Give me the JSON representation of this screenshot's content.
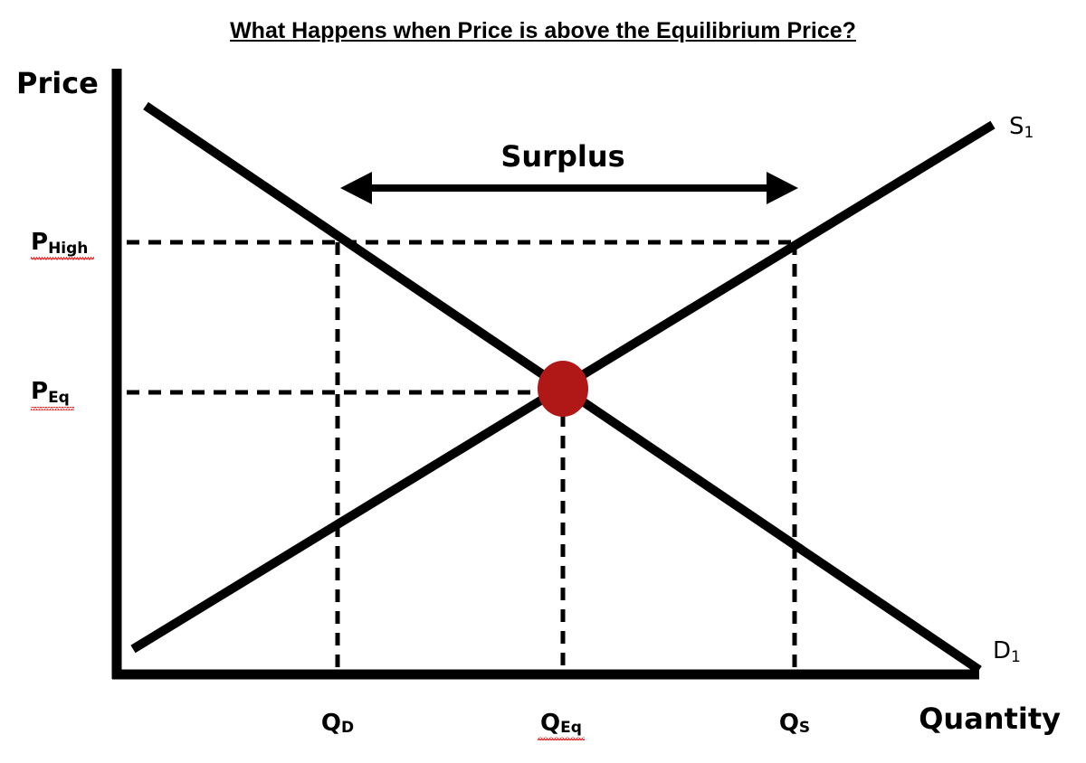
{
  "title": "What Happens when Price is above the Equilibrium Price?",
  "axes": {
    "y_label": "Price",
    "x_label": "Quantity"
  },
  "price_ticks": {
    "high": {
      "main": "P",
      "sub": "High"
    },
    "eq": {
      "main": "P",
      "sub": "Eq"
    }
  },
  "quantity_ticks": {
    "demanded": {
      "main": "Q",
      "sub": "D"
    },
    "eq": {
      "main": "Q",
      "sub": "Eq"
    },
    "supplied": {
      "main": "Q",
      "sub": "S"
    }
  },
  "curves": {
    "supply": {
      "main": "S",
      "sub": "1"
    },
    "demand": {
      "main": "D",
      "sub": "1"
    }
  },
  "surplus_label": "Surplus",
  "colors": {
    "line": "#000000",
    "equilibrium_point": "#b01818",
    "spellcheck_underline": "#e03030"
  }
}
